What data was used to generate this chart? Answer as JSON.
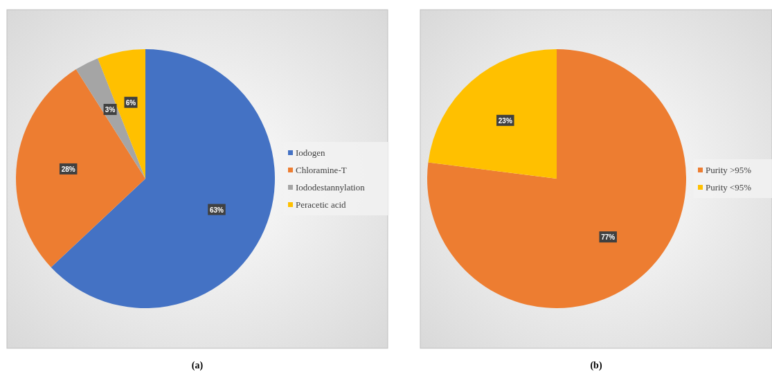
{
  "chart_data": [
    {
      "type": "pie",
      "title": "(a)",
      "categories": [
        "Iodogen",
        "Chloramine-T",
        "Iododestannylation",
        "Peracetic acid"
      ],
      "values": [
        63,
        28,
        3,
        6
      ],
      "colors": [
        "#4472c4",
        "#ed7d31",
        "#a5a5a5",
        "#ffc000"
      ],
      "value_labels": [
        "63%",
        "28%",
        "3%",
        "6%"
      ],
      "legend": "right"
    },
    {
      "type": "pie",
      "title": "(b)",
      "categories": [
        "Purity >95%",
        "Purity <95%"
      ],
      "values": [
        77,
        23
      ],
      "colors": [
        "#ed7d31",
        "#ffc000"
      ],
      "value_labels": [
        "77%",
        "23%"
      ],
      "legend": "right"
    }
  ]
}
